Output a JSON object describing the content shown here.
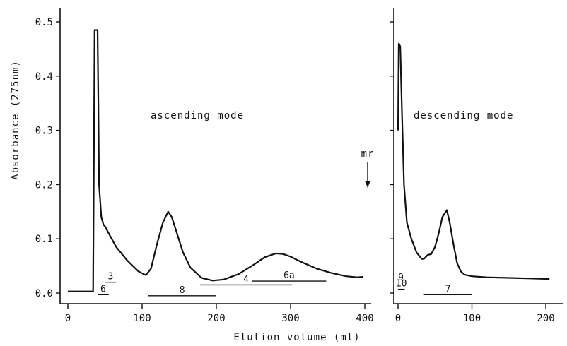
{
  "chart_data": {
    "type": "line",
    "ylabel": "Absorbance (275nm)",
    "xlabel": "Elution volume (ml)",
    "ylim": [
      0,
      0.5
    ],
    "y_ticks": [
      "0.0",
      "0.1",
      "0.2",
      "0.3",
      "0.4",
      "0.5"
    ],
    "grid": false,
    "legend": "none",
    "panels": [
      {
        "annotation": "ascending mode",
        "xlim": [
          0,
          400
        ],
        "x_ticks": [
          "0",
          "100",
          "200",
          "300",
          "400"
        ],
        "series": [
          {
            "x": [
              0,
              34,
              35,
              36,
              40,
              41,
              42,
              45,
              48,
              50,
              55,
              65,
              80,
              95,
              105,
              112,
              120,
              128,
              135,
              140,
              147,
              155,
              165,
              180,
              195,
              210,
              230,
              250,
              265,
              280,
              290,
              300,
              315,
              335,
              355,
              375,
              390,
              398
            ],
            "y": [
              0.003,
              0.003,
              0.25,
              0.485,
              0.485,
              0.35,
              0.2,
              0.14,
              0.126,
              0.123,
              0.11,
              0.085,
              0.06,
              0.04,
              0.033,
              0.045,
              0.09,
              0.13,
              0.15,
              0.14,
              0.11,
              0.075,
              0.047,
              0.028,
              0.023,
              0.025,
              0.035,
              0.052,
              0.066,
              0.073,
              0.072,
              0.067,
              0.057,
              0.045,
              0.037,
              0.031,
              0.029,
              0.03
            ]
          }
        ],
        "fractions": [
          {
            "label": "3",
            "x": [
              50,
              65
            ],
            "y": 0.02
          },
          {
            "label": "6",
            "x": [
              40,
              55
            ],
            "y": -0.003
          },
          {
            "label": "8",
            "x": [
              108,
              200
            ],
            "y": -0.005
          },
          {
            "label": "4",
            "x": [
              178,
              302
            ],
            "y": 0.015
          },
          {
            "label": "6a",
            "x": [
              248,
              348
            ],
            "y": 0.022
          }
        ],
        "marker": {
          "label": "mr",
          "arrow": "down"
        }
      },
      {
        "annotation": "descending mode",
        "xlim": [
          0,
          200
        ],
        "x_ticks": [
          "0",
          "100",
          "200"
        ],
        "series": [
          {
            "x": [
              0,
              1,
              3,
              5,
              8,
              12,
              18,
              25,
              32,
              35,
              40,
              45,
              50,
              55,
              60,
              66,
              70,
              75,
              80,
              85,
              90,
              100,
              120,
              150,
              180,
              205
            ],
            "y": [
              0.3,
              0.46,
              0.455,
              0.35,
              0.2,
              0.13,
              0.1,
              0.075,
              0.063,
              0.063,
              0.07,
              0.072,
              0.085,
              0.11,
              0.14,
              0.153,
              0.13,
              0.09,
              0.055,
              0.04,
              0.034,
              0.031,
              0.029,
              0.028,
              0.027,
              0.026
            ]
          }
        ],
        "fractions": [
          {
            "label": "9",
            "x": [
              0,
              0
            ],
            "y": 0.018
          },
          {
            "label": "10",
            "x": [
              0,
              9
            ],
            "y": 0.007
          },
          {
            "label": "7",
            "x": [
              35,
              100
            ],
            "y": -0.003
          }
        ]
      }
    ]
  }
}
